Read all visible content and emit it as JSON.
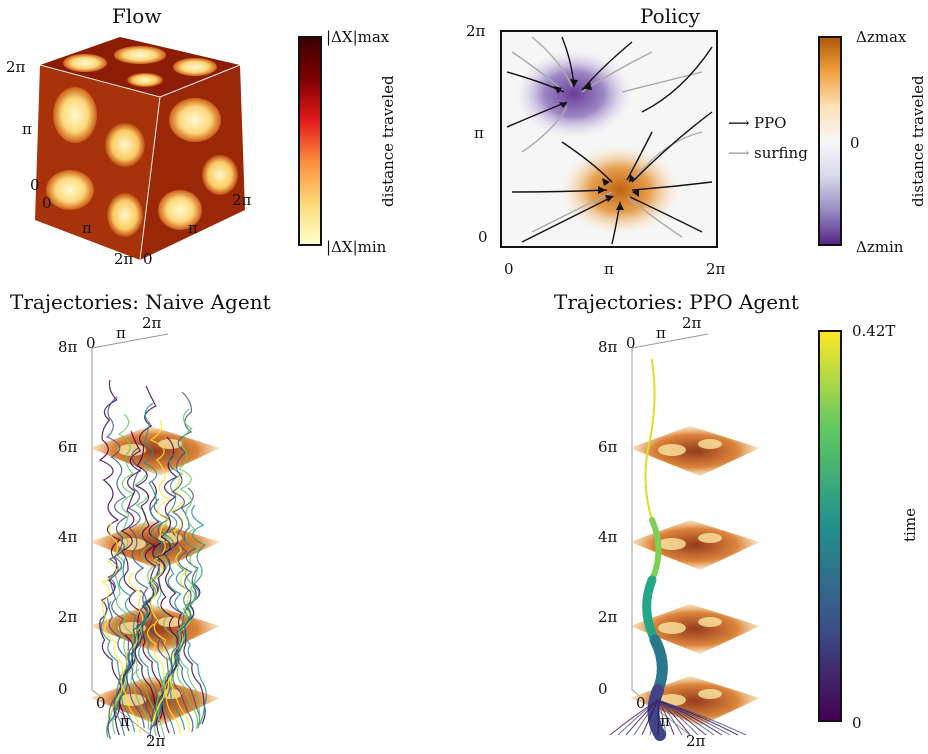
{
  "flow": {
    "title": "Flow",
    "z_ticks": [
      "2π",
      "π",
      "0"
    ],
    "x_ticks": [
      "0",
      "π",
      "2π"
    ],
    "y_ticks": [
      "0",
      "π",
      "2π"
    ],
    "colorbar": {
      "top": "|ΔX|max",
      "bottom": "|ΔX|min",
      "label": "distance traveled",
      "colors": [
        "#ffffcc",
        "#fed976",
        "#fd8d3c",
        "#e31a1c",
        "#7f0000",
        "#3d0000"
      ]
    }
  },
  "policy": {
    "title": "Policy",
    "y_ticks": [
      "2π",
      "π",
      "0"
    ],
    "x_ticks": [
      "0",
      "π",
      "2π"
    ],
    "legend": [
      {
        "label": "PPO",
        "color": "#000000"
      },
      {
        "label": "surfing",
        "color": "#9a9a9a"
      }
    ],
    "colorbar": {
      "top": "Δzmax",
      "mid": "0",
      "bottom": "Δzmin",
      "label": "distance traveled",
      "colors": [
        "#b35806",
        "#f1a340",
        "#fee0b6",
        "#f7f7f7",
        "#d8daeb",
        "#998ec3",
        "#542788"
      ]
    }
  },
  "naive": {
    "title": "Trajectories: Naive Agent",
    "z_ticks": [
      "8π",
      "6π",
      "4π",
      "2π",
      "0"
    ],
    "top_ticks": [
      "0",
      "π",
      "2π"
    ],
    "bottom_ticks": [
      "0",
      "π",
      "2π"
    ]
  },
  "ppo": {
    "title": "Trajectories: PPO Agent",
    "z_ticks": [
      "8π",
      "6π",
      "4π",
      "2π",
      "0"
    ],
    "top_ticks": [
      "0",
      "π",
      "2π"
    ],
    "bottom_ticks": [
      "0",
      "π",
      "2π"
    ]
  },
  "time_colorbar": {
    "top": "0.42T",
    "bottom": "0",
    "label": "time",
    "colors": [
      "#fde725",
      "#5ec962",
      "#21918c",
      "#3b528b",
      "#440154"
    ]
  }
}
